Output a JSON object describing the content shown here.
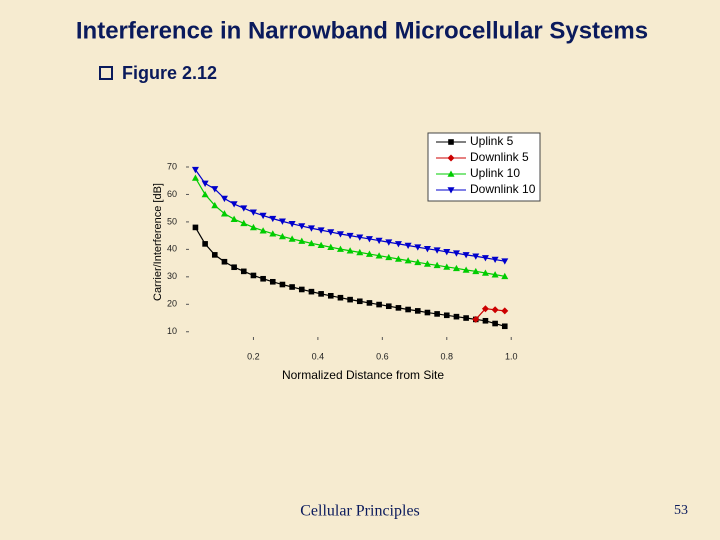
{
  "slide": {
    "title": "Interference in Narrowband Microcellular Systems",
    "bullet": "Figure 2.12",
    "footer": "Cellular Principles",
    "page_number": "53"
  },
  "chart_data": {
    "type": "line",
    "xlabel": "Normalized Distance from Site",
    "ylabel": "Carrier/Interference [dB]",
    "x": [
      0.02,
      0.05,
      0.08,
      0.11,
      0.14,
      0.17,
      0.2,
      0.23,
      0.26,
      0.29,
      0.32,
      0.35,
      0.38,
      0.41,
      0.44,
      0.47,
      0.5,
      0.53,
      0.56,
      0.59,
      0.62,
      0.65,
      0.68,
      0.71,
      0.74,
      0.77,
      0.8,
      0.83,
      0.86,
      0.89,
      0.92,
      0.95,
      0.98
    ],
    "series": [
      {
        "name": "Uplink 5",
        "color": "#000000",
        "marker": "square",
        "values": [
          48,
          42,
          38,
          35.5,
          33.5,
          32,
          30.5,
          29.3,
          28.2,
          27.2,
          26.3,
          25.4,
          24.6,
          23.8,
          23.1,
          22.4,
          21.7,
          21.1,
          20.5,
          19.9,
          19.3,
          18.7,
          18.1,
          17.6,
          17,
          16.5,
          16,
          15.5,
          15,
          14.5,
          14,
          13,
          12
        ]
      },
      {
        "name": "Downlink 5",
        "color": "#cc0000",
        "marker": "diamond",
        "values": [
          null,
          null,
          null,
          null,
          null,
          null,
          null,
          null,
          null,
          null,
          null,
          null,
          null,
          null,
          null,
          null,
          null,
          null,
          null,
          null,
          null,
          null,
          null,
          null,
          null,
          null,
          null,
          null,
          null,
          14.5,
          18.4,
          18,
          17.6
        ]
      },
      {
        "name": "Uplink 10",
        "color": "#00cc00",
        "marker": "triangle-up",
        "values": [
          66,
          60,
          56,
          53,
          51,
          49.5,
          48,
          46.8,
          45.7,
          44.7,
          43.8,
          43,
          42.2,
          41.5,
          40.8,
          40.1,
          39.5,
          38.9,
          38.3,
          37.7,
          37.1,
          36.5,
          35.9,
          35.3,
          34.7,
          34.2,
          33.6,
          33.1,
          32.5,
          32,
          31.4,
          30.8,
          30.2
        ]
      },
      {
        "name": "Downlink 10",
        "color": "#0000cc",
        "marker": "triangle-down",
        "values": [
          69,
          64,
          62,
          58.5,
          56.5,
          55,
          53.5,
          52.3,
          51.2,
          50.2,
          49.3,
          48.5,
          47.7,
          47,
          46.3,
          45.6,
          45,
          44.4,
          43.8,
          43.2,
          42.6,
          42,
          41.4,
          40.8,
          40.2,
          39.7,
          39.1,
          38.6,
          38,
          37.5,
          36.9,
          36.3,
          35.7
        ]
      }
    ],
    "xlim": [
      0,
      1.08
    ],
    "ylim": [
      7,
      74
    ],
    "xticks": [
      0.2,
      0.4,
      0.6,
      0.8,
      {
        "value": 1,
        "label": "1.0"
      }
    ],
    "yticks": [
      10,
      20,
      30,
      40,
      50,
      60,
      70
    ],
    "legend": "top-right"
  }
}
